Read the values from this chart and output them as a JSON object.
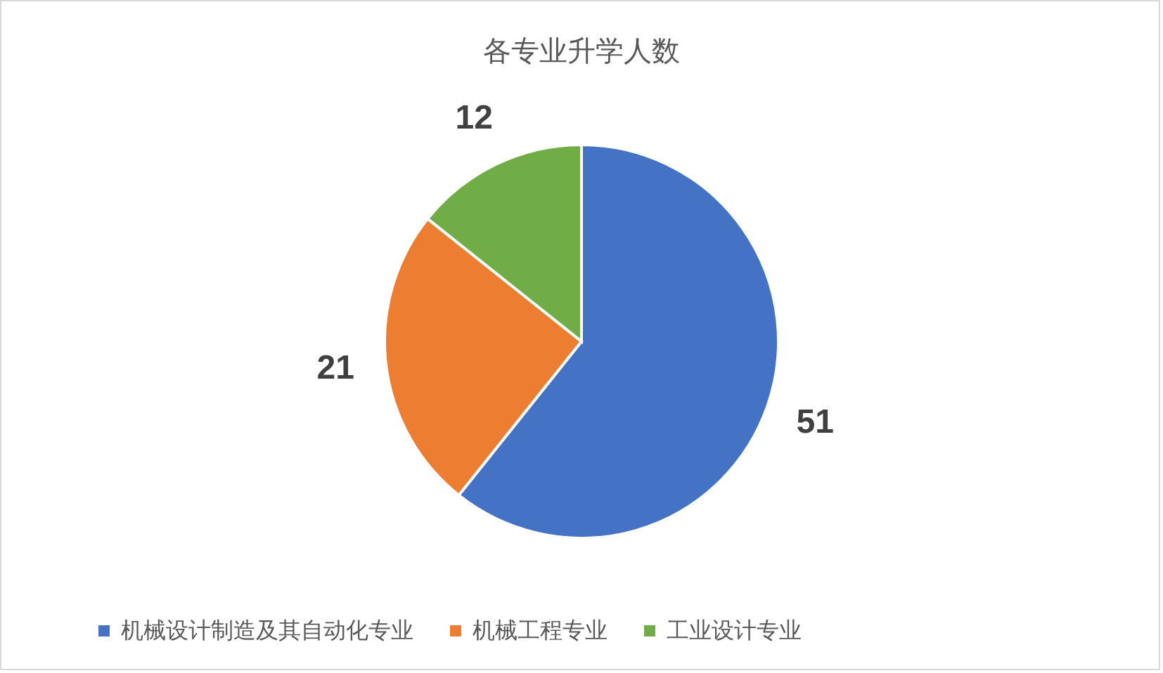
{
  "chart_data": {
    "type": "pie",
    "title": "各专业升学人数",
    "categories": [
      "机械设计制造及其自动化专业",
      "机械工程专业",
      "工业设计专业"
    ],
    "values": [
      51,
      21,
      12
    ],
    "colors": [
      "#4472c4",
      "#ed7d31",
      "#70ad47"
    ],
    "data_labels": true,
    "legend": "bottom"
  }
}
